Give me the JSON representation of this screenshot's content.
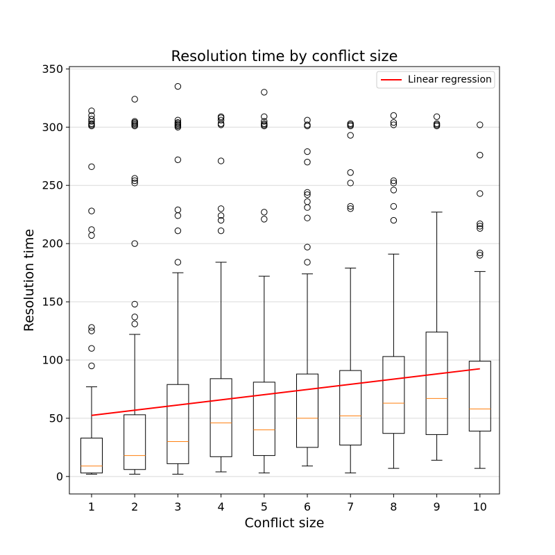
{
  "chart_data": {
    "type": "box",
    "title": "Resolution time by conflict size",
    "xlabel": "Conflict size",
    "ylabel": "Resolution time",
    "ylim": [
      -15,
      352
    ],
    "yticks": [
      0,
      50,
      100,
      150,
      200,
      250,
      300,
      350
    ],
    "grid": "horizontal",
    "legend_position": "top-right",
    "categories": [
      "1",
      "2",
      "3",
      "4",
      "5",
      "6",
      "7",
      "8",
      "9",
      "10"
    ],
    "boxes": [
      {
        "x": 1,
        "whisker_low": 2,
        "q1": 3,
        "median": 9,
        "q3": 33,
        "whisker_high": 77,
        "outliers": [
          95,
          110,
          125,
          128,
          207,
          212,
          228,
          266,
          301,
          302,
          303,
          305,
          307,
          310,
          314
        ]
      },
      {
        "x": 2,
        "whisker_low": 2,
        "q1": 6,
        "median": 18,
        "q3": 53,
        "whisker_high": 122,
        "outliers": [
          131,
          137,
          148,
          200,
          252,
          254,
          256,
          301,
          302,
          303,
          304,
          305,
          324
        ]
      },
      {
        "x": 3,
        "whisker_low": 2,
        "q1": 11,
        "median": 30,
        "q3": 79,
        "whisker_high": 175,
        "outliers": [
          184,
          211,
          224,
          229,
          272,
          300,
          301,
          302,
          303,
          304,
          306,
          335
        ]
      },
      {
        "x": 4,
        "whisker_low": 4,
        "q1": 17,
        "median": 46,
        "q3": 84,
        "whisker_high": 184,
        "outliers": [
          211,
          220,
          224,
          230,
          271,
          302,
          303,
          306,
          308,
          309
        ]
      },
      {
        "x": 5,
        "whisker_low": 3,
        "q1": 18,
        "median": 40,
        "q3": 81,
        "whisker_high": 172,
        "outliers": [
          221,
          227,
          301,
          302,
          303,
          305,
          309,
          330
        ]
      },
      {
        "x": 6,
        "whisker_low": 9,
        "q1": 25,
        "median": 50,
        "q3": 88,
        "whisker_high": 174,
        "outliers": [
          184,
          197,
          222,
          231,
          236,
          242,
          244,
          270,
          279,
          301,
          302,
          306
        ]
      },
      {
        "x": 7,
        "whisker_low": 3,
        "q1": 27,
        "median": 52,
        "q3": 91,
        "whisker_high": 179,
        "outliers": [
          230,
          232,
          252,
          261,
          293,
          301,
          302,
          303
        ]
      },
      {
        "x": 8,
        "whisker_low": 7,
        "q1": 37,
        "median": 63,
        "q3": 103,
        "whisker_high": 191,
        "outliers": [
          220,
          232,
          246,
          252,
          254,
          302,
          304,
          310
        ]
      },
      {
        "x": 9,
        "whisker_low": 14,
        "q1": 36,
        "median": 67,
        "q3": 124,
        "whisker_high": 227,
        "outliers": [
          301,
          302,
          303,
          309
        ]
      },
      {
        "x": 10,
        "whisker_low": 7,
        "q1": 39,
        "median": 58,
        "q3": 99,
        "whisker_high": 176,
        "outliers": [
          190,
          192,
          213,
          215,
          217,
          243,
          276,
          302
        ]
      }
    ],
    "regression": {
      "name": "Linear regression",
      "x": [
        1,
        10
      ],
      "y": [
        52.5,
        92.5
      ]
    },
    "colors": {
      "box": "#000000",
      "median": "#ff7f0e",
      "regression": "#ff0000",
      "grid": "#d9d9d9"
    }
  }
}
